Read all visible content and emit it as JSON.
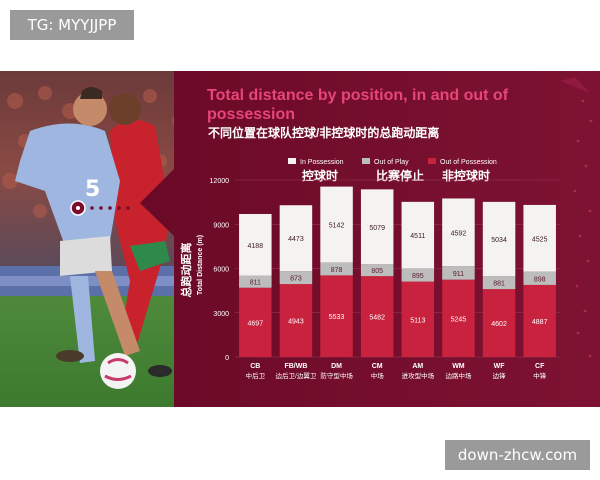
{
  "top_badge": "TG: MYYJJPP",
  "watermark": "down-zhcw.com",
  "colors": {
    "panel_bg": "#7a0d2e",
    "title": "#e8457a",
    "in_possession": "#f5f2f2",
    "out_of_play": "#bdbdbd",
    "out_of_possession": "#c8223e"
  },
  "chart_data": {
    "type": "bar",
    "stacked": true,
    "title": "Total distance by position, in and out of possession",
    "subtitle": "不同位置在球队控球/非控球时的总跑动距离",
    "ylabel": "Total Distance (m)",
    "ylabel_cn": "总跑动距离",
    "ylim": [
      0,
      12000
    ],
    "yticks": [
      "0",
      "3000",
      "6000",
      "9000",
      "12000"
    ],
    "legend_position": "top",
    "categories": [
      "CB",
      "FB/WB",
      "DM",
      "CM",
      "AM",
      "WM",
      "WF",
      "CF"
    ],
    "categories_cn": [
      "中后卫",
      "边后卫/边翼卫",
      "防守型中场",
      "中场",
      "进攻型中场",
      "边路中场",
      "边锋",
      "中锋"
    ],
    "series": [
      {
        "name": "Out of Possession",
        "name_cn": "非控球时",
        "values": [
          4697,
          4943,
          5533,
          5482,
          5113,
          5245,
          4602,
          4887
        ]
      },
      {
        "name": "Out of Play",
        "name_cn": "比赛停止",
        "values": [
          811,
          873,
          878,
          805,
          895,
          911,
          881,
          898
        ]
      },
      {
        "name": "In Possession",
        "name_cn": "控球时",
        "values": [
          4188,
          4473,
          5142,
          5079,
          4511,
          4592,
          5034,
          4525
        ]
      }
    ]
  }
}
